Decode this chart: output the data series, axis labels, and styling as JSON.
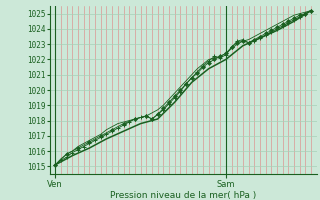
{
  "xlabel": "Pression niveau de la mer( hPa )",
  "bg_color": "#cce8d8",
  "grid_h_color": "#a8d0b8",
  "grid_v_color": "#e08080",
  "line_color": "#1a6020",
  "axis_color": "#1a6020",
  "text_color": "#1a6020",
  "ylim": [
    1014.5,
    1025.5
  ],
  "xlim": [
    0,
    94
  ],
  "yticks": [
    1015,
    1016,
    1017,
    1018,
    1019,
    1020,
    1021,
    1022,
    1023,
    1024,
    1025
  ],
  "ven_x": 2,
  "sam_x": 62,
  "smooth_line": [
    [
      2,
      1015.1
    ],
    [
      8,
      1015.7
    ],
    [
      14,
      1016.2
    ],
    [
      20,
      1016.8
    ],
    [
      26,
      1017.3
    ],
    [
      32,
      1017.8
    ],
    [
      38,
      1018.1
    ],
    [
      44,
      1019.2
    ],
    [
      50,
      1020.5
    ],
    [
      56,
      1021.4
    ],
    [
      62,
      1022.0
    ],
    [
      68,
      1022.9
    ],
    [
      74,
      1023.4
    ],
    [
      80,
      1023.9
    ],
    [
      86,
      1024.5
    ],
    [
      92,
      1025.2
    ]
  ],
  "jagged_line1": [
    [
      2,
      1015.1
    ],
    [
      4,
      1015.4
    ],
    [
      6,
      1015.6
    ],
    [
      8,
      1015.9
    ],
    [
      10,
      1016.1
    ],
    [
      12,
      1016.3
    ],
    [
      14,
      1016.5
    ],
    [
      16,
      1016.7
    ],
    [
      18,
      1016.9
    ],
    [
      20,
      1017.1
    ],
    [
      22,
      1017.3
    ],
    [
      24,
      1017.5
    ],
    [
      26,
      1017.7
    ],
    [
      28,
      1017.9
    ],
    [
      30,
      1018.1
    ],
    [
      32,
      1018.2
    ],
    [
      34,
      1018.3
    ],
    [
      36,
      1018.1
    ],
    [
      38,
      1018.4
    ],
    [
      40,
      1018.7
    ],
    [
      42,
      1019.1
    ],
    [
      44,
      1019.5
    ],
    [
      46,
      1019.9
    ],
    [
      48,
      1020.4
    ],
    [
      50,
      1020.8
    ],
    [
      52,
      1021.2
    ],
    [
      54,
      1021.6
    ],
    [
      56,
      1021.9
    ],
    [
      58,
      1022.2
    ],
    [
      60,
      1022.1
    ],
    [
      62,
      1022.3
    ],
    [
      64,
      1022.8
    ],
    [
      66,
      1023.2
    ],
    [
      68,
      1023.3
    ],
    [
      70,
      1023.1
    ],
    [
      72,
      1023.2
    ],
    [
      74,
      1023.4
    ],
    [
      76,
      1023.6
    ],
    [
      78,
      1023.8
    ],
    [
      80,
      1024.0
    ],
    [
      82,
      1024.2
    ],
    [
      84,
      1024.4
    ],
    [
      86,
      1024.6
    ],
    [
      88,
      1024.8
    ],
    [
      90,
      1025.0
    ],
    [
      92,
      1025.2
    ]
  ],
  "jagged_line2": [
    [
      2,
      1015.1
    ],
    [
      4,
      1015.5
    ],
    [
      6,
      1015.8
    ],
    [
      8,
      1016.0
    ],
    [
      10,
      1016.3
    ],
    [
      12,
      1016.5
    ],
    [
      14,
      1016.7
    ],
    [
      16,
      1016.9
    ],
    [
      18,
      1017.1
    ],
    [
      20,
      1017.4
    ],
    [
      22,
      1017.6
    ],
    [
      24,
      1017.8
    ],
    [
      26,
      1017.9
    ],
    [
      28,
      1018.0
    ],
    [
      30,
      1018.1
    ],
    [
      32,
      1018.2
    ],
    [
      34,
      1018.3
    ],
    [
      36,
      1018.5
    ],
    [
      38,
      1018.7
    ],
    [
      40,
      1019.0
    ],
    [
      42,
      1019.4
    ],
    [
      44,
      1019.8
    ],
    [
      46,
      1020.2
    ],
    [
      48,
      1020.6
    ],
    [
      50,
      1021.0
    ],
    [
      52,
      1021.4
    ],
    [
      54,
      1021.7
    ],
    [
      56,
      1022.0
    ],
    [
      58,
      1022.1
    ],
    [
      60,
      1022.2
    ],
    [
      62,
      1022.4
    ],
    [
      64,
      1022.7
    ],
    [
      66,
      1023.0
    ],
    [
      68,
      1023.2
    ],
    [
      70,
      1023.3
    ],
    [
      72,
      1023.5
    ],
    [
      74,
      1023.7
    ],
    [
      76,
      1023.9
    ],
    [
      78,
      1024.1
    ],
    [
      80,
      1024.3
    ],
    [
      82,
      1024.5
    ],
    [
      84,
      1024.7
    ],
    [
      86,
      1024.9
    ],
    [
      88,
      1025.0
    ],
    [
      90,
      1025.1
    ],
    [
      92,
      1025.2
    ]
  ],
  "marker_line": [
    [
      2,
      1015.1
    ],
    [
      6,
      1015.8
    ],
    [
      10,
      1016.2
    ],
    [
      14,
      1016.6
    ],
    [
      18,
      1017.0
    ],
    [
      22,
      1017.4
    ],
    [
      26,
      1017.8
    ],
    [
      30,
      1018.1
    ],
    [
      34,
      1018.3
    ],
    [
      36,
      1018.1
    ],
    [
      38,
      1018.4
    ],
    [
      40,
      1018.8
    ],
    [
      42,
      1019.2
    ],
    [
      44,
      1019.6
    ],
    [
      46,
      1020.0
    ],
    [
      48,
      1020.4
    ],
    [
      50,
      1020.8
    ],
    [
      52,
      1021.1
    ],
    [
      54,
      1021.5
    ],
    [
      56,
      1021.8
    ],
    [
      58,
      1022.0
    ],
    [
      60,
      1022.2
    ],
    [
      62,
      1022.4
    ],
    [
      64,
      1022.8
    ],
    [
      66,
      1023.1
    ],
    [
      68,
      1023.2
    ],
    [
      70,
      1023.1
    ],
    [
      72,
      1023.3
    ],
    [
      74,
      1023.5
    ],
    [
      76,
      1023.7
    ],
    [
      78,
      1023.9
    ],
    [
      80,
      1024.1
    ],
    [
      82,
      1024.3
    ],
    [
      84,
      1024.5
    ],
    [
      86,
      1024.7
    ],
    [
      88,
      1024.9
    ],
    [
      90,
      1025.0
    ],
    [
      92,
      1025.2
    ]
  ]
}
